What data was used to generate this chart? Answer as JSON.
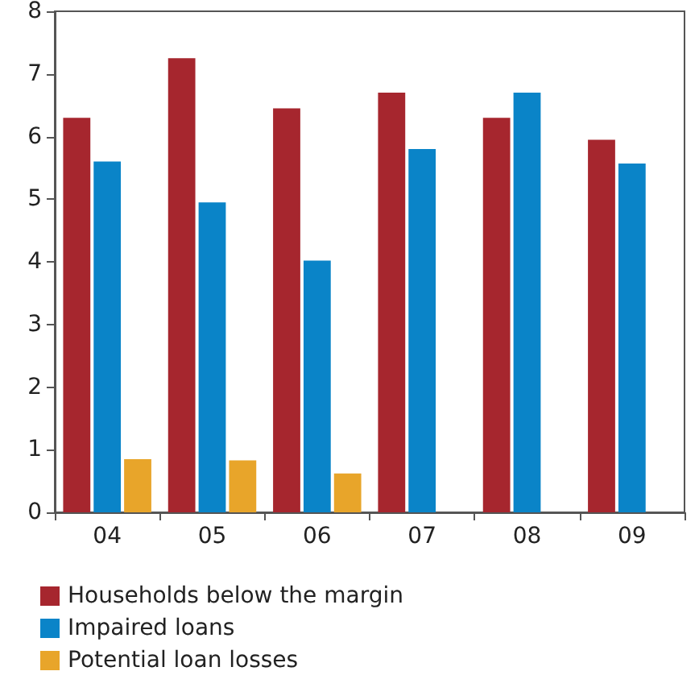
{
  "chart_data": {
    "type": "bar",
    "categories": [
      "04",
      "05",
      "06",
      "07",
      "08",
      "09"
    ],
    "series": [
      {
        "name": "Households below the margin",
        "color": "#a6262e",
        "values": [
          6.3,
          7.25,
          6.45,
          6.7,
          6.3,
          5.95
        ]
      },
      {
        "name": "Impaired loans",
        "color": "#0a84c8",
        "values": [
          5.6,
          4.95,
          4.02,
          5.8,
          6.7,
          5.57
        ]
      },
      {
        "name": "Potential loan losses",
        "color": "#e8a52a",
        "values": [
          0.85,
          0.83,
          0.62,
          null,
          null,
          null
        ]
      }
    ],
    "ylim": [
      0,
      8
    ],
    "yticks": [
      0,
      1,
      2,
      3,
      4,
      5,
      6,
      7,
      8
    ],
    "grid": false,
    "legend": "bottom"
  }
}
